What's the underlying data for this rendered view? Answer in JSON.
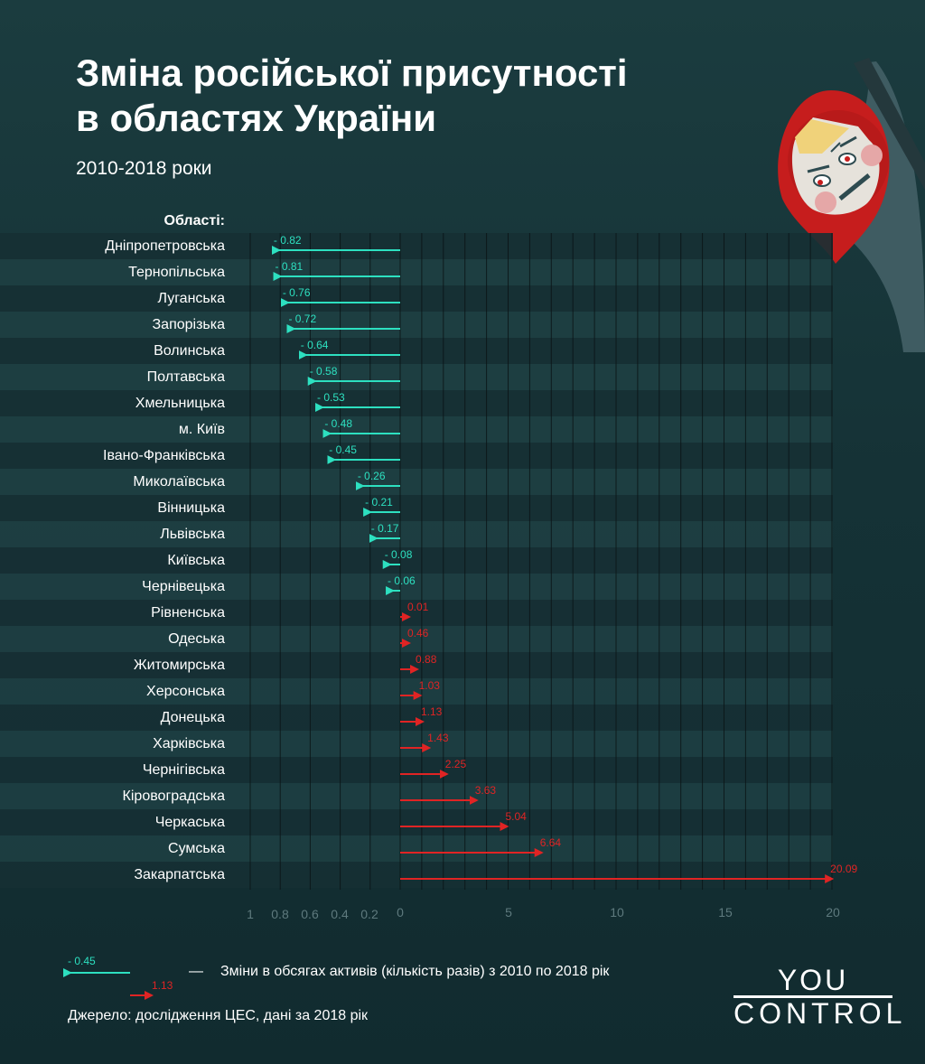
{
  "header": {
    "title_line1": "Зміна російської присутності",
    "title_line2": "в областях України",
    "subtitle": "2010-2018 роки"
  },
  "colors": {
    "negative": "#2de0c0",
    "positive": "#e02424",
    "background": "#173538"
  },
  "chart_data": {
    "type": "bar",
    "orientation": "horizontal-arrows",
    "category_header": "Області:",
    "categories": [
      "Дніпропетровська",
      "Тернопільська",
      "Луганська",
      "Запорізька",
      "Волинська",
      "Полтавська",
      "Хмельницька",
      "м. Київ",
      "Івано-Франківська",
      "Миколаївська",
      "Вінницька",
      "Львівська",
      "Київська",
      "Чернівецька",
      "Рівненська",
      "Одеська",
      "Житомирська",
      "Херсонська",
      "Донецька",
      "Харківська",
      "Чернігівська",
      "Кіровоградська",
      "Черкаська",
      "Сумська",
      "Закарпатська"
    ],
    "values": [
      -0.82,
      -0.81,
      -0.76,
      -0.72,
      -0.64,
      -0.58,
      -0.53,
      -0.48,
      -0.45,
      -0.26,
      -0.21,
      -0.17,
      -0.08,
      -0.06,
      0.01,
      0.46,
      0.88,
      1.03,
      1.13,
      1.43,
      2.25,
      3.63,
      5.04,
      6.64,
      20.09
    ],
    "value_labels": [
      "- 0.82",
      "- 0.81",
      "- 0.76",
      "- 0.72",
      "- 0.64",
      "- 0.58",
      "- 0.53",
      "- 0.48",
      "- 0.45",
      "- 0.26",
      "- 0.21",
      "- 0.17",
      "- 0.08",
      "- 0.06",
      "0.01",
      "0.46",
      "0.88",
      "1.03",
      "1.13",
      "1.43",
      "2.25",
      "3.63",
      "5.04",
      "6.64",
      "20.09"
    ],
    "x_ticks_negative": [
      1,
      0.8,
      0.6,
      0.4,
      0.2
    ],
    "x_tick_negative_labels": [
      "1",
      "0.8",
      "0.6",
      "0.4",
      "0.2"
    ],
    "x_ticks_positive": [
      0,
      5,
      10,
      15,
      20
    ],
    "x_tick_positive_labels": [
      "0",
      "5",
      "10",
      "15",
      "20"
    ],
    "negative_range": [
      -1,
      0
    ],
    "positive_range": [
      0,
      20
    ]
  },
  "legend": {
    "negative_label": "- 0.45",
    "positive_label": "1.13",
    "dash": "—",
    "description": "Зміни в обсягах активів (кількість разів) з 2010 по 2018 рік"
  },
  "footer": {
    "source": "Джерело: дослідження ЦЕС, дані за 2018 рік",
    "logo_line1": "YOU",
    "logo_line2": "CONTROL"
  }
}
